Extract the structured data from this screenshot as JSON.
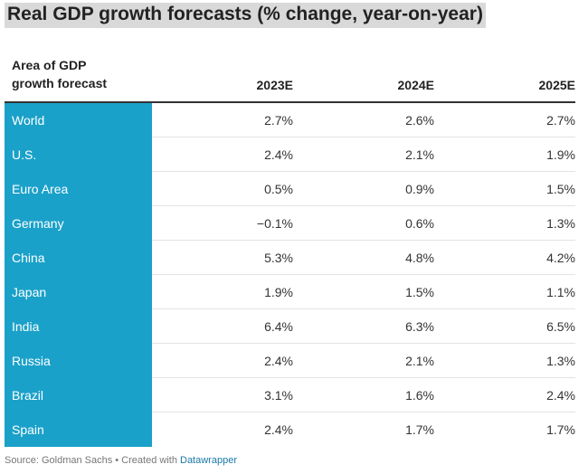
{
  "title": "Real GDP growth forecasts (% change, year-on-year)",
  "chart_data": {
    "type": "table",
    "columns": [
      "Area of GDP growth forecast",
      "2023E",
      "2024E",
      "2025E"
    ],
    "header_first_line1": "Area of GDP",
    "header_first_line2": "growth forecast",
    "rows": [
      {
        "area": "World",
        "values": [
          "2.7%",
          "2.6%",
          "2.7%"
        ]
      },
      {
        "area": "U.S.",
        "values": [
          "2.4%",
          "2.1%",
          "1.9%"
        ]
      },
      {
        "area": "Euro Area",
        "values": [
          "0.5%",
          "0.9%",
          "1.5%"
        ]
      },
      {
        "area": "Germany",
        "values": [
          "−0.1%",
          "0.6%",
          "1.3%"
        ]
      },
      {
        "area": "China",
        "values": [
          "5.3%",
          "4.8%",
          "4.2%"
        ]
      },
      {
        "area": "Japan",
        "values": [
          "1.9%",
          "1.5%",
          "1.1%"
        ]
      },
      {
        "area": "India",
        "values": [
          "6.4%",
          "6.3%",
          "6.5%"
        ]
      },
      {
        "area": "Russia",
        "values": [
          "2.4%",
          "2.1%",
          "1.3%"
        ]
      },
      {
        "area": "Brazil",
        "values": [
          "3.1%",
          "1.6%",
          "2.4%"
        ]
      },
      {
        "area": "Spain",
        "values": [
          "2.4%",
          "1.7%",
          "1.7%"
        ]
      }
    ],
    "label_color": "#1aa1c9"
  },
  "footer": {
    "source": "Source: Goldman Sachs • Created with ",
    "link": "Datawrapper"
  }
}
